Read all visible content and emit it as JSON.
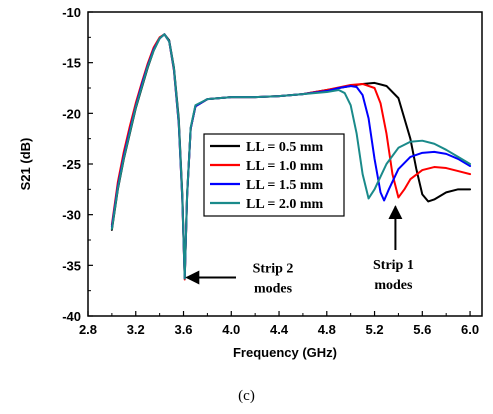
{
  "chart_data": {
    "type": "line",
    "xlabel": "Frequency (GHz)",
    "ylabel": "S21 (dB)",
    "xlim": [
      2.8,
      6.1
    ],
    "ylim": [
      -40,
      -10
    ],
    "xticks": [
      2.8,
      3.2,
      3.6,
      4.0,
      4.4,
      4.8,
      5.2,
      5.6,
      6.0
    ],
    "xtick_labels": [
      "2.8",
      "3.2",
      "3.6",
      "4.0",
      "4.4",
      "4.8",
      "5.2",
      "5.6",
      "6.0"
    ],
    "yticks": [
      -10,
      -15,
      -20,
      -25,
      -30,
      -35,
      -40
    ],
    "ytick_labels": [
      "-10",
      "-15",
      "-20",
      "-25",
      "-30",
      "-35",
      "-40"
    ],
    "grid": false,
    "legend_position": "center-right",
    "series": [
      {
        "name": "LL = 0.5 mm",
        "color": "#000000",
        "points": [
          [
            3.0,
            -31.5
          ],
          [
            3.05,
            -27.5
          ],
          [
            3.1,
            -24.5
          ],
          [
            3.15,
            -22.0
          ],
          [
            3.2,
            -19.5
          ],
          [
            3.25,
            -17.5
          ],
          [
            3.3,
            -15.5
          ],
          [
            3.35,
            -13.8
          ],
          [
            3.4,
            -12.6
          ],
          [
            3.44,
            -12.2
          ],
          [
            3.48,
            -12.8
          ],
          [
            3.52,
            -15.5
          ],
          [
            3.56,
            -20.5
          ],
          [
            3.59,
            -28.0
          ],
          [
            3.61,
            -36.2
          ],
          [
            3.63,
            -28.0
          ],
          [
            3.66,
            -21.5
          ],
          [
            3.7,
            -19.3
          ],
          [
            3.8,
            -18.6
          ],
          [
            4.0,
            -18.4
          ],
          [
            4.2,
            -18.4
          ],
          [
            4.4,
            -18.3
          ],
          [
            4.6,
            -18.1
          ],
          [
            4.8,
            -17.7
          ],
          [
            5.0,
            -17.3
          ],
          [
            5.1,
            -17.1
          ],
          [
            5.2,
            -17.0
          ],
          [
            5.3,
            -17.3
          ],
          [
            5.4,
            -18.5
          ],
          [
            5.5,
            -22.5
          ],
          [
            5.55,
            -25.5
          ],
          [
            5.6,
            -28.0
          ],
          [
            5.65,
            -28.7
          ],
          [
            5.7,
            -28.5
          ],
          [
            5.8,
            -27.8
          ],
          [
            5.9,
            -27.5
          ],
          [
            6.0,
            -27.5
          ]
        ]
      },
      {
        "name": "LL = 1.0 mm",
        "color": "#ff0000",
        "points": [
          [
            3.0,
            -31.0
          ],
          [
            3.05,
            -26.8
          ],
          [
            3.1,
            -23.8
          ],
          [
            3.15,
            -21.3
          ],
          [
            3.2,
            -19.0
          ],
          [
            3.25,
            -17.0
          ],
          [
            3.3,
            -15.1
          ],
          [
            3.35,
            -13.5
          ],
          [
            3.4,
            -12.5
          ],
          [
            3.44,
            -12.2
          ],
          [
            3.48,
            -12.9
          ],
          [
            3.52,
            -15.8
          ],
          [
            3.56,
            -21.0
          ],
          [
            3.59,
            -28.5
          ],
          [
            3.61,
            -36.4
          ],
          [
            3.63,
            -28.2
          ],
          [
            3.66,
            -21.5
          ],
          [
            3.7,
            -19.3
          ],
          [
            3.8,
            -18.6
          ],
          [
            4.0,
            -18.4
          ],
          [
            4.2,
            -18.4
          ],
          [
            4.4,
            -18.3
          ],
          [
            4.6,
            -18.1
          ],
          [
            4.8,
            -17.7
          ],
          [
            5.0,
            -17.2
          ],
          [
            5.1,
            -17.1
          ],
          [
            5.2,
            -17.5
          ],
          [
            5.25,
            -19.0
          ],
          [
            5.3,
            -22.0
          ],
          [
            5.35,
            -26.0
          ],
          [
            5.4,
            -28.3
          ],
          [
            5.45,
            -27.5
          ],
          [
            5.5,
            -26.5
          ],
          [
            5.6,
            -25.6
          ],
          [
            5.7,
            -25.3
          ],
          [
            5.8,
            -25.4
          ],
          [
            5.9,
            -25.7
          ],
          [
            6.0,
            -26.0
          ]
        ]
      },
      {
        "name": "LL = 1.5 mm",
        "color": "#0000ff",
        "points": [
          [
            3.0,
            -31.2
          ],
          [
            3.05,
            -27.2
          ],
          [
            3.1,
            -24.2
          ],
          [
            3.15,
            -21.7
          ],
          [
            3.2,
            -19.3
          ],
          [
            3.25,
            -17.2
          ],
          [
            3.3,
            -15.3
          ],
          [
            3.35,
            -13.7
          ],
          [
            3.4,
            -12.6
          ],
          [
            3.44,
            -12.2
          ],
          [
            3.48,
            -12.9
          ],
          [
            3.52,
            -15.7
          ],
          [
            3.56,
            -21.0
          ],
          [
            3.59,
            -28.5
          ],
          [
            3.61,
            -36.3
          ],
          [
            3.63,
            -28.2
          ],
          [
            3.66,
            -21.5
          ],
          [
            3.7,
            -19.3
          ],
          [
            3.8,
            -18.6
          ],
          [
            4.0,
            -18.4
          ],
          [
            4.2,
            -18.4
          ],
          [
            4.4,
            -18.3
          ],
          [
            4.6,
            -18.1
          ],
          [
            4.8,
            -17.8
          ],
          [
            4.9,
            -17.5
          ],
          [
            5.0,
            -17.3
          ],
          [
            5.05,
            -17.4
          ],
          [
            5.1,
            -18.2
          ],
          [
            5.15,
            -20.5
          ],
          [
            5.2,
            -24.5
          ],
          [
            5.25,
            -27.8
          ],
          [
            5.28,
            -28.6
          ],
          [
            5.32,
            -27.5
          ],
          [
            5.4,
            -25.5
          ],
          [
            5.5,
            -24.3
          ],
          [
            5.6,
            -23.9
          ],
          [
            5.7,
            -23.8
          ],
          [
            5.8,
            -24.0
          ],
          [
            5.9,
            -24.5
          ],
          [
            6.0,
            -25.2
          ]
        ]
      },
      {
        "name": "LL = 2.0 mm",
        "color": "#1a8a8a",
        "points": [
          [
            3.0,
            -31.4
          ],
          [
            3.05,
            -27.4
          ],
          [
            3.1,
            -24.4
          ],
          [
            3.15,
            -21.9
          ],
          [
            3.2,
            -19.4
          ],
          [
            3.25,
            -17.4
          ],
          [
            3.3,
            -15.4
          ],
          [
            3.35,
            -13.8
          ],
          [
            3.4,
            -12.6
          ],
          [
            3.44,
            -12.2
          ],
          [
            3.48,
            -12.9
          ],
          [
            3.52,
            -15.6
          ],
          [
            3.56,
            -20.8
          ],
          [
            3.59,
            -28.3
          ],
          [
            3.61,
            -36.3
          ],
          [
            3.63,
            -28.1
          ],
          [
            3.66,
            -21.4
          ],
          [
            3.7,
            -19.2
          ],
          [
            3.8,
            -18.6
          ],
          [
            4.0,
            -18.4
          ],
          [
            4.2,
            -18.4
          ],
          [
            4.4,
            -18.3
          ],
          [
            4.6,
            -18.1
          ],
          [
            4.8,
            -17.9
          ],
          [
            4.9,
            -17.7
          ],
          [
            4.95,
            -18.0
          ],
          [
            5.0,
            -19.2
          ],
          [
            5.05,
            -22.0
          ],
          [
            5.1,
            -26.0
          ],
          [
            5.15,
            -28.4
          ],
          [
            5.2,
            -27.5
          ],
          [
            5.3,
            -25.0
          ],
          [
            5.4,
            -23.4
          ],
          [
            5.5,
            -22.8
          ],
          [
            5.6,
            -22.7
          ],
          [
            5.7,
            -23.0
          ],
          [
            5.8,
            -23.6
          ],
          [
            5.9,
            -24.3
          ],
          [
            6.0,
            -25.0
          ]
        ]
      }
    ],
    "annotations": [
      {
        "text_lines": [
          "Strip 2",
          "modes"
        ],
        "arrow_target": [
          3.61,
          -36.3
        ]
      },
      {
        "text_lines": [
          "Strip 1",
          "modes"
        ],
        "arrow_target": [
          5.4,
          -28.5
        ]
      }
    ]
  },
  "caption": "(c)"
}
